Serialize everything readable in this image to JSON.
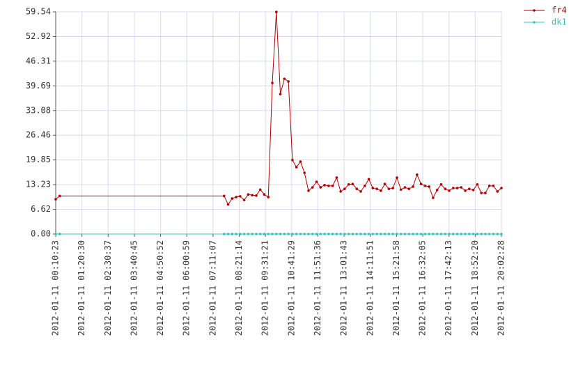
{
  "chart_data": {
    "type": "line",
    "x": [
      "2012-01-11 00:10:23",
      "2012-01-11 00:21:08",
      "2012-01-11 07:40:43",
      "2012-01-11 07:51:28",
      "2012-01-11 08:02:13",
      "2012-01-11 08:12:58",
      "2012-01-11 08:23:43",
      "2012-01-11 08:34:28",
      "2012-01-11 08:45:13",
      "2012-01-11 08:55:58",
      "2012-01-11 09:06:43",
      "2012-01-11 09:17:28",
      "2012-01-11 09:28:13",
      "2012-01-11 09:38:58",
      "2012-01-11 09:49:43",
      "2012-01-11 10:00:28",
      "2012-01-11 10:11:13",
      "2012-01-11 10:21:58",
      "2012-01-11 10:32:43",
      "2012-01-11 10:43:28",
      "2012-01-11 10:54:13",
      "2012-01-11 11:04:58",
      "2012-01-11 11:15:43",
      "2012-01-11 11:26:28",
      "2012-01-11 11:37:13",
      "2012-01-11 11:47:58",
      "2012-01-11 11:58:43",
      "2012-01-11 12:09:28",
      "2012-01-11 12:20:13",
      "2012-01-11 12:30:58",
      "2012-01-11 12:41:43",
      "2012-01-11 12:52:28",
      "2012-01-11 13:03:13",
      "2012-01-11 13:13:58",
      "2012-01-11 13:24:43",
      "2012-01-11 13:35:28",
      "2012-01-11 13:46:13",
      "2012-01-11 13:56:58",
      "2012-01-11 14:07:43",
      "2012-01-11 14:18:28",
      "2012-01-11 14:29:13",
      "2012-01-11 14:39:58",
      "2012-01-11 14:50:43",
      "2012-01-11 15:01:28",
      "2012-01-11 15:12:13",
      "2012-01-11 15:22:58",
      "2012-01-11 15:33:43",
      "2012-01-11 15:44:28",
      "2012-01-11 15:55:13",
      "2012-01-11 16:05:58",
      "2012-01-11 16:16:43",
      "2012-01-11 16:27:28",
      "2012-01-11 16:38:13",
      "2012-01-11 16:48:58",
      "2012-01-11 16:59:43",
      "2012-01-11 17:10:28",
      "2012-01-11 17:21:13",
      "2012-01-11 17:31:58",
      "2012-01-11 17:42:43",
      "2012-01-11 17:53:28",
      "2012-01-11 18:04:13",
      "2012-01-11 18:14:58",
      "2012-01-11 18:25:43",
      "2012-01-11 18:36:28",
      "2012-01-11 18:47:13",
      "2012-01-11 18:57:58",
      "2012-01-11 19:08:43",
      "2012-01-11 19:19:28",
      "2012-01-11 19:30:13",
      "2012-01-11 19:40:58",
      "2012-01-11 19:51:43",
      "2012-01-11 20:02:28"
    ],
    "series": [
      {
        "name": "fr4",
        "color": "#b00000",
        "values": [
          9.3,
          10.2,
          10.2,
          7.9,
          9.5,
          9.9,
          10.1,
          9.1,
          10.6,
          10.4,
          10.3,
          11.9,
          10.6,
          9.9,
          40.5,
          59.5,
          37.5,
          41.6,
          40.9,
          19.8,
          17.9,
          19.4,
          16.4,
          11.6,
          12.5,
          14.0,
          12.5,
          13.1,
          12.9,
          12.9,
          15.1,
          11.4,
          12.1,
          13.3,
          13.4,
          12.1,
          11.4,
          12.9,
          14.7,
          12.3,
          12.1,
          11.6,
          13.4,
          12.1,
          12.3,
          15.1,
          11.9,
          12.5,
          12.1,
          12.7,
          15.9,
          13.4,
          12.9,
          12.7,
          9.7,
          11.8,
          13.3,
          12.1,
          11.6,
          12.3,
          12.3,
          12.5,
          11.6,
          12.1,
          11.8,
          13.3,
          11.0,
          11.0,
          12.9,
          12.9,
          11.4,
          12.3
        ]
      },
      {
        "name": "dk1",
        "color": "#33c4c4",
        "values": [
          0,
          0,
          0,
          0,
          0,
          0,
          0,
          0,
          0,
          0,
          0,
          0,
          0,
          0,
          0,
          0,
          0,
          0,
          0,
          0,
          0,
          0,
          0,
          0,
          0,
          0,
          0,
          0,
          0,
          0,
          0,
          0,
          0,
          0,
          0,
          0,
          0,
          0,
          0,
          0,
          0,
          0,
          0,
          0,
          0,
          0,
          0,
          0,
          0,
          0,
          0,
          0,
          0,
          0,
          0,
          0,
          0,
          0,
          0,
          0,
          0,
          0,
          0,
          0,
          0,
          0,
          0,
          0,
          0,
          0,
          0,
          0
        ]
      }
    ],
    "xlim": [
      "2012-01-11 00:10:23",
      "2012-01-11 20:02:28"
    ],
    "xticks": [
      "2012-01-11 00:10:23",
      "2012-01-11 01:20:30",
      "2012-01-11 02:30:37",
      "2012-01-11 03:40:45",
      "2012-01-11 04:50:52",
      "2012-01-11 06:00:59",
      "2012-01-11 07:11:07",
      "2012-01-11 08:21:14",
      "2012-01-11 09:31:21",
      "2012-01-11 10:41:29",
      "2012-01-11 11:51:36",
      "2012-01-11 13:01:43",
      "2012-01-11 14:11:51",
      "2012-01-11 15:21:58",
      "2012-01-11 16:32:05",
      "2012-01-11 17:42:13",
      "2012-01-11 18:52:20",
      "2012-01-11 20:02:28"
    ],
    "ylim": [
      0,
      59.54
    ],
    "yticks": [
      {
        "value": 0,
        "label": "0.00"
      },
      6.62,
      13.23,
      19.85,
      26.46,
      33.08,
      39.69,
      46.31,
      52.92,
      59.54
    ],
    "grid": true,
    "legend": "top-right"
  }
}
